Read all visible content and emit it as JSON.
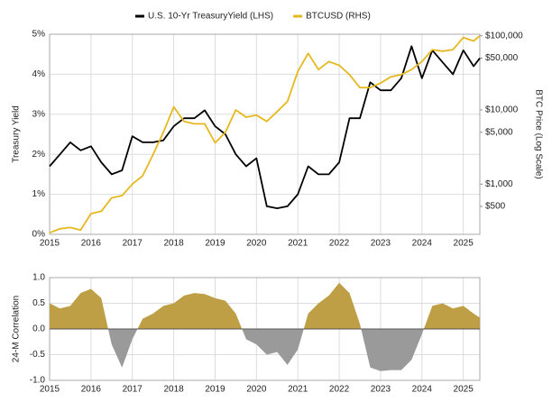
{
  "chart_data": [
    {
      "type": "line",
      "ylabel": "Treasury Yield",
      "y2label": "BTC Price (Log Scale)",
      "xlim": [
        2015,
        2025.4
      ],
      "xticks": [
        2015,
        2016,
        2017,
        2018,
        2019,
        2020,
        2021,
        2022,
        2023,
        2024,
        2025
      ],
      "ylim": [
        0,
        5
      ],
      "yticks": [
        {
          "value": 0,
          "label": "0%"
        },
        {
          "value": 1,
          "label": "1%"
        },
        {
          "value": 2,
          "label": "2%"
        },
        {
          "value": 3,
          "label": "3%"
        },
        {
          "value": 4,
          "label": "4%"
        },
        {
          "value": 5,
          "label": "5%"
        }
      ],
      "y2lim": [
        210,
        105000
      ],
      "y2log": true,
      "y2ticks": [
        {
          "value": 500,
          "label": "$500"
        },
        {
          "value": 1000,
          "label": "$1,000"
        },
        {
          "value": 5000,
          "label": "$5,000"
        },
        {
          "value": 10000,
          "label": "$10,000"
        },
        {
          "value": 50000,
          "label": "$50,000"
        },
        {
          "value": 100000,
          "label": "$100,000"
        }
      ],
      "grid": true,
      "x": [
        2015.0,
        2015.25,
        2015.5,
        2015.75,
        2016.0,
        2016.25,
        2016.5,
        2016.75,
        2017.0,
        2017.25,
        2017.5,
        2017.75,
        2018.0,
        2018.25,
        2018.5,
        2018.75,
        2019.0,
        2019.25,
        2019.5,
        2019.75,
        2020.0,
        2020.25,
        2020.5,
        2020.75,
        2021.0,
        2021.25,
        2021.5,
        2021.75,
        2022.0,
        2022.25,
        2022.5,
        2022.75,
        2023.0,
        2023.25,
        2023.5,
        2023.75,
        2024.0,
        2024.25,
        2024.5,
        2024.75,
        2025.0,
        2025.25,
        2025.4
      ],
      "series": [
        {
          "name": "U.S. 10-Yr TreasuryYield (LHS)",
          "color": "#000000",
          "axis": "y",
          "values": [
            1.7,
            2.0,
            2.3,
            2.1,
            2.2,
            1.8,
            1.5,
            1.6,
            2.45,
            2.3,
            2.3,
            2.35,
            2.7,
            2.9,
            2.9,
            3.1,
            2.7,
            2.5,
            2.0,
            1.7,
            1.9,
            0.7,
            0.65,
            0.7,
            1.0,
            1.7,
            1.5,
            1.5,
            1.8,
            2.9,
            2.9,
            3.8,
            3.6,
            3.6,
            3.9,
            4.7,
            3.9,
            4.6,
            4.3,
            4.0,
            4.6,
            4.2,
            4.4
          ]
        },
        {
          "name": "BTCUSD (RHS)",
          "color": "#e6b820",
          "axis": "y2",
          "values": [
            220,
            250,
            260,
            240,
            400,
            430,
            650,
            700,
            1000,
            1300,
            2500,
            5000,
            11000,
            7000,
            6500,
            6500,
            3600,
            5000,
            10000,
            8000,
            8500,
            7000,
            9500,
            13000,
            33000,
            58000,
            35000,
            45000,
            40000,
            30000,
            20000,
            20000,
            23000,
            28000,
            30000,
            35000,
            45000,
            65000,
            62000,
            65000,
            95000,
            85000,
            100000
          ]
        }
      ]
    },
    {
      "type": "area",
      "ylabel": "24-M Correlation",
      "xlim": [
        2015,
        2025.4
      ],
      "xticks": [
        2015,
        2016,
        2017,
        2018,
        2019,
        2020,
        2021,
        2022,
        2023,
        2024,
        2025
      ],
      "ylim": [
        -1,
        1
      ],
      "yticks": [
        {
          "value": -1,
          "label": "-1.0"
        },
        -0.5,
        {
          "value": 0,
          "label": "0.0"
        },
        0.5,
        {
          "value": 1,
          "label": "1.0"
        }
      ],
      "grid": true,
      "positive_color": "#bf9f45",
      "negative_color": "#9a9a9a",
      "x": [
        2015.0,
        2015.25,
        2015.5,
        2015.75,
        2016.0,
        2016.25,
        2016.5,
        2016.75,
        2017.0,
        2017.25,
        2017.5,
        2017.75,
        2018.0,
        2018.25,
        2018.5,
        2018.75,
        2019.0,
        2019.25,
        2019.5,
        2019.75,
        2020.0,
        2020.25,
        2020.5,
        2020.75,
        2021.0,
        2021.25,
        2021.5,
        2021.75,
        2022.0,
        2022.25,
        2022.5,
        2022.75,
        2023.0,
        2023.25,
        2023.5,
        2023.75,
        2024.0,
        2024.25,
        2024.5,
        2024.75,
        2025.0,
        2025.25,
        2025.4
      ],
      "values": [
        0.5,
        0.4,
        0.45,
        0.7,
        0.78,
        0.6,
        -0.3,
        -0.75,
        -0.2,
        0.2,
        0.3,
        0.45,
        0.5,
        0.65,
        0.7,
        0.68,
        0.6,
        0.55,
        0.3,
        -0.2,
        -0.3,
        -0.5,
        -0.45,
        -0.7,
        -0.4,
        0.3,
        0.5,
        0.65,
        0.9,
        0.7,
        0.1,
        -0.75,
        -0.82,
        -0.8,
        -0.8,
        -0.6,
        -0.1,
        0.45,
        0.5,
        0.4,
        0.45,
        0.3,
        0.22
      ]
    }
  ]
}
